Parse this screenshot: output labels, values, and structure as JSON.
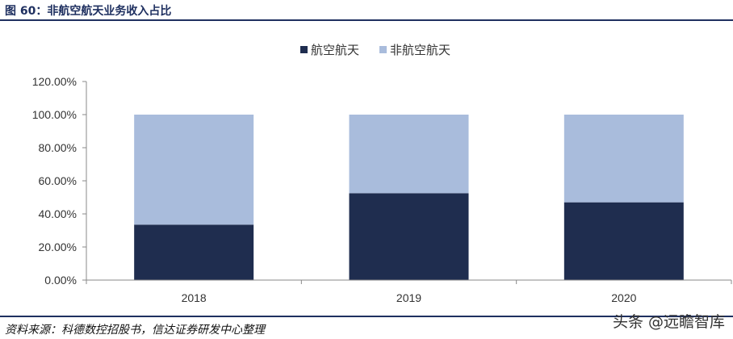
{
  "header": {
    "figure_title": "图 60：非航空航天业务收入占比"
  },
  "footer": {
    "source": "资料来源：科德数控招股书，信达证券研发中心整理",
    "watermark": "头条 @远瞻智库"
  },
  "chart_data": {
    "type": "bar",
    "stacked": true,
    "categories": [
      "2018",
      "2019",
      "2020"
    ],
    "series": [
      {
        "name": "航空航天",
        "values": [
          33.5,
          52.5,
          47.0
        ],
        "color": "#1f2d4f"
      },
      {
        "name": "非航空航天",
        "values": [
          66.5,
          47.5,
          53.0
        ],
        "color": "#a9bcdc"
      }
    ],
    "ylim": [
      0,
      120
    ],
    "yticks": [
      "0.00%",
      "20.00%",
      "40.00%",
      "60.00%",
      "80.00%",
      "100.00%",
      "120.00%"
    ],
    "legend_position": "top-center",
    "grid": false
  }
}
